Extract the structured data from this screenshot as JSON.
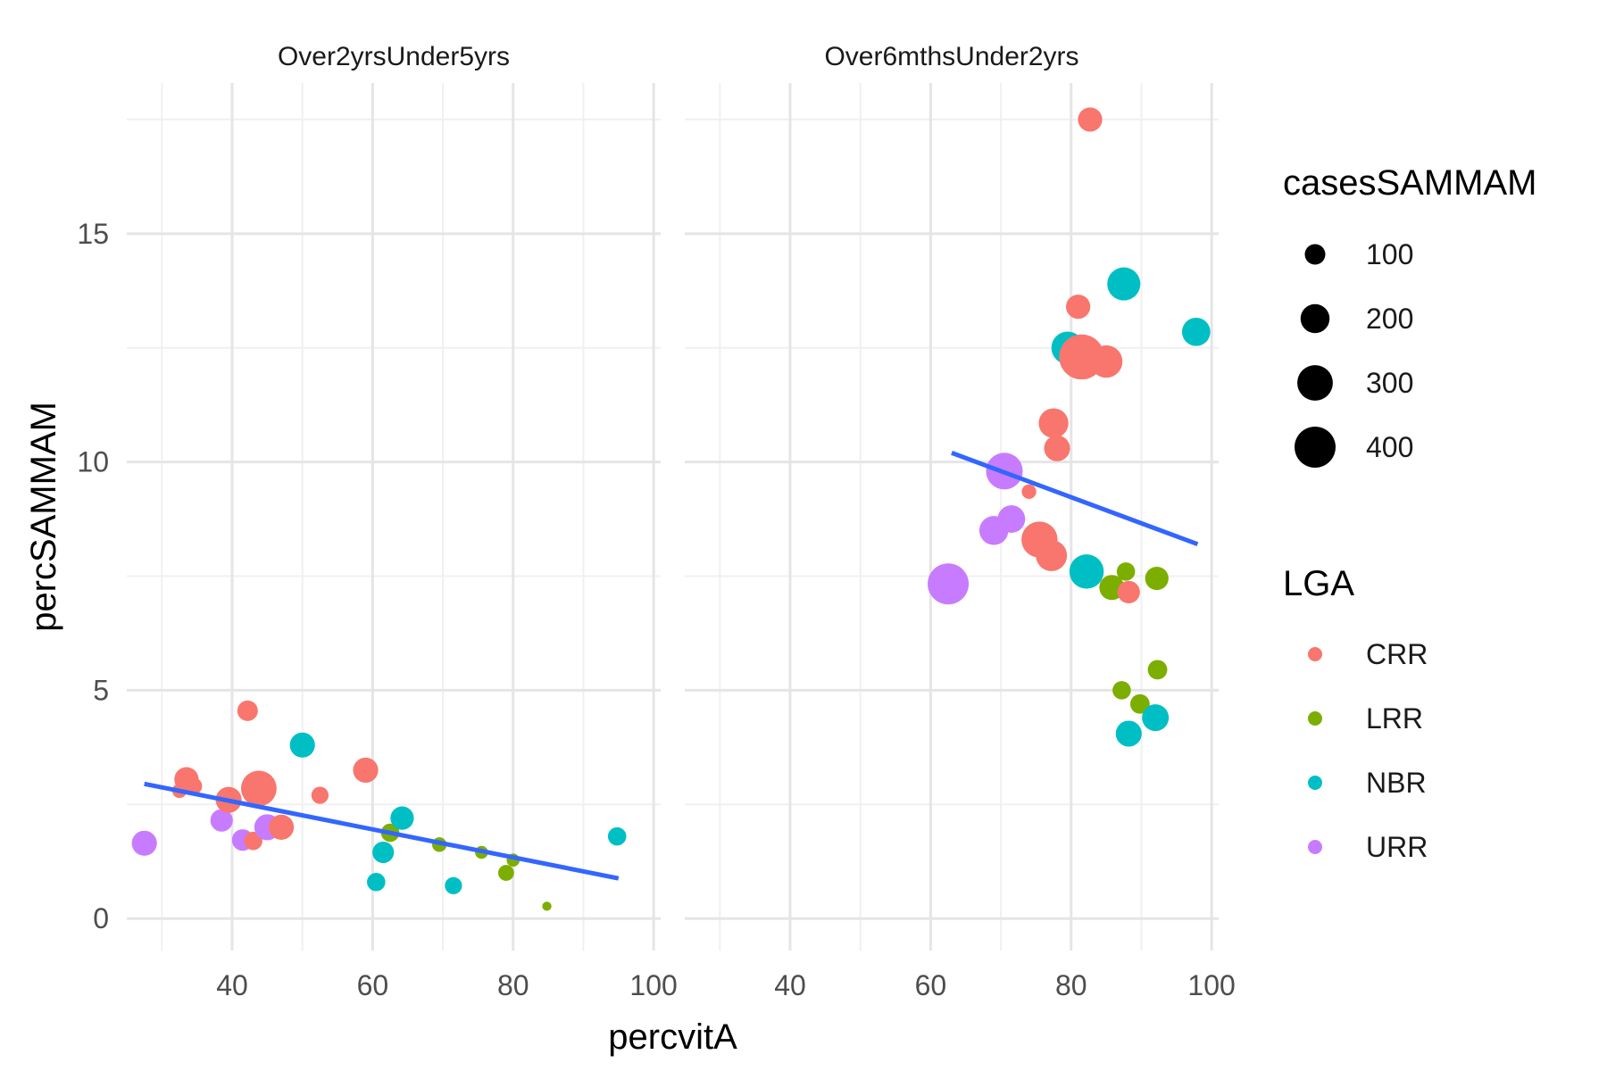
{
  "chart_data": {
    "type": "scatter",
    "xlabel": "percvitA",
    "ylabel": "percSAMMAM",
    "xlim": [
      25,
      101
    ],
    "ylim": [
      -0.7,
      18.3
    ],
    "x_ticks": [
      40,
      60,
      80,
      100
    ],
    "y_ticks": [
      0,
      5,
      10,
      15
    ],
    "grid": true,
    "colors": {
      "CRR": "#F8766D",
      "LRR": "#7CAE00",
      "NBR": "#00BFC4",
      "URR": "#C77CFF",
      "trend": "#3366FF"
    },
    "legend_position": "right",
    "size_legend": {
      "title": "casesSAMMAM",
      "values": [
        100,
        200,
        300,
        400
      ],
      "labels": [
        "100",
        "200",
        "300",
        "400"
      ]
    },
    "color_legend": {
      "title": "LGA",
      "entries": [
        "CRR",
        "LRR",
        "NBR",
        "URR"
      ]
    },
    "facets": [
      {
        "title": "Over2yrsUnder5yrs",
        "trend": {
          "x": [
            27.5,
            95
          ],
          "y": [
            2.95,
            0.88
          ]
        },
        "points": [
          {
            "x": 27.5,
            "y": 1.65,
            "size": 150,
            "group": "URR"
          },
          {
            "x": 32.5,
            "y": 2.8,
            "size": 50,
            "group": "CRR"
          },
          {
            "x": 33.5,
            "y": 3.05,
            "size": 140,
            "group": "CRR"
          },
          {
            "x": 34.5,
            "y": 2.9,
            "size": 70,
            "group": "CRR"
          },
          {
            "x": 38.5,
            "y": 2.15,
            "size": 120,
            "group": "URR"
          },
          {
            "x": 39.5,
            "y": 2.6,
            "size": 160,
            "group": "CRR"
          },
          {
            "x": 41.5,
            "y": 1.72,
            "size": 110,
            "group": "URR"
          },
          {
            "x": 42.2,
            "y": 4.55,
            "size": 100,
            "group": "CRR"
          },
          {
            "x": 43,
            "y": 1.7,
            "size": 80,
            "group": "CRR"
          },
          {
            "x": 43.8,
            "y": 2.85,
            "size": 300,
            "group": "CRR"
          },
          {
            "x": 45,
            "y": 2.0,
            "size": 160,
            "group": "URR"
          },
          {
            "x": 47,
            "y": 2.0,
            "size": 150,
            "group": "CRR"
          },
          {
            "x": 50,
            "y": 3.8,
            "size": 150,
            "group": "NBR"
          },
          {
            "x": 52.5,
            "y": 2.7,
            "size": 70,
            "group": "CRR"
          },
          {
            "x": 59,
            "y": 3.25,
            "size": 150,
            "group": "CRR"
          },
          {
            "x": 60.5,
            "y": 0.8,
            "size": 80,
            "group": "NBR"
          },
          {
            "x": 61.5,
            "y": 1.45,
            "size": 110,
            "group": "NBR"
          },
          {
            "x": 62.5,
            "y": 1.88,
            "size": 80,
            "group": "LRR"
          },
          {
            "x": 64.2,
            "y": 2.2,
            "size": 130,
            "group": "NBR"
          },
          {
            "x": 69.5,
            "y": 1.62,
            "size": 50,
            "group": "LRR"
          },
          {
            "x": 71.5,
            "y": 0.72,
            "size": 70,
            "group": "NBR"
          },
          {
            "x": 75.5,
            "y": 1.45,
            "size": 40,
            "group": "LRR"
          },
          {
            "x": 79,
            "y": 1.0,
            "size": 60,
            "group": "LRR"
          },
          {
            "x": 80,
            "y": 1.28,
            "size": 40,
            "group": "LRR"
          },
          {
            "x": 84.8,
            "y": 0.27,
            "size": 20,
            "group": "LRR"
          },
          {
            "x": 94.8,
            "y": 1.8,
            "size": 80,
            "group": "NBR"
          }
        ]
      },
      {
        "title": "Over6mthsUnder2yrs",
        "trend": {
          "x": [
            63,
            98
          ],
          "y": [
            10.2,
            8.2
          ]
        },
        "points": [
          {
            "x": 62.5,
            "y": 7.33,
            "size": 400,
            "group": "URR"
          },
          {
            "x": 69,
            "y": 8.5,
            "size": 200,
            "group": "URR"
          },
          {
            "x": 70.5,
            "y": 9.8,
            "size": 320,
            "group": "URR"
          },
          {
            "x": 71.5,
            "y": 8.75,
            "size": 180,
            "group": "URR"
          },
          {
            "x": 74,
            "y": 9.35,
            "size": 50,
            "group": "CRR"
          },
          {
            "x": 75.5,
            "y": 8.3,
            "size": 310,
            "group": "CRR"
          },
          {
            "x": 77.2,
            "y": 7.95,
            "size": 230,
            "group": "CRR"
          },
          {
            "x": 77.5,
            "y": 10.85,
            "size": 210,
            "group": "CRR"
          },
          {
            "x": 78,
            "y": 10.3,
            "size": 160,
            "group": "CRR"
          },
          {
            "x": 79.5,
            "y": 12.5,
            "size": 250,
            "group": "NBR"
          },
          {
            "x": 81,
            "y": 13.4,
            "size": 140,
            "group": "CRR"
          },
          {
            "x": 81.5,
            "y": 12.3,
            "size": 480,
            "group": "CRR"
          },
          {
            "x": 82.2,
            "y": 7.6,
            "size": 280,
            "group": "NBR"
          },
          {
            "x": 82.7,
            "y": 17.5,
            "size": 140,
            "group": "CRR"
          },
          {
            "x": 85,
            "y": 12.2,
            "size": 250,
            "group": "CRR"
          },
          {
            "x": 85.8,
            "y": 7.25,
            "size": 150,
            "group": "LRR"
          },
          {
            "x": 87.2,
            "y": 5.0,
            "size": 80,
            "group": "LRR"
          },
          {
            "x": 87.5,
            "y": 13.9,
            "size": 260,
            "group": "NBR"
          },
          {
            "x": 87.8,
            "y": 7.6,
            "size": 80,
            "group": "LRR"
          },
          {
            "x": 88.2,
            "y": 7.15,
            "size": 120,
            "group": "CRR"
          },
          {
            "x": 88.2,
            "y": 4.05,
            "size": 160,
            "group": "NBR"
          },
          {
            "x": 89.8,
            "y": 4.7,
            "size": 90,
            "group": "LRR"
          },
          {
            "x": 92,
            "y": 4.4,
            "size": 170,
            "group": "NBR"
          },
          {
            "x": 92.2,
            "y": 7.45,
            "size": 130,
            "group": "LRR"
          },
          {
            "x": 92.3,
            "y": 5.45,
            "size": 90,
            "group": "LRR"
          },
          {
            "x": 97.8,
            "y": 12.85,
            "size": 190,
            "group": "NBR"
          }
        ]
      }
    ]
  }
}
